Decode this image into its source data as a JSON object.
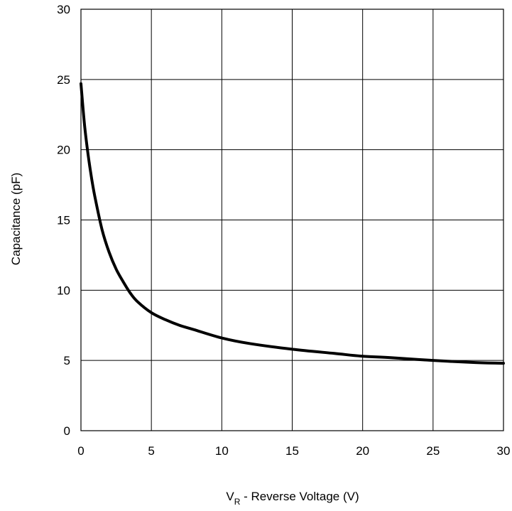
{
  "chart_data": {
    "type": "line",
    "title": "",
    "xlabel": {
      "main": "V",
      "subscript": "R",
      "rest": " - Reverse Voltage (V)"
    },
    "ylabel": "Capacitance (pF)",
    "xlim": [
      0,
      30
    ],
    "ylim": [
      0,
      30
    ],
    "xticks": [
      "0",
      "5",
      "10",
      "15",
      "20",
      "25",
      "30"
    ],
    "yticks": [
      "0",
      "5",
      "10",
      "15",
      "20",
      "25",
      "30"
    ],
    "grid": true,
    "legend": "none",
    "line_color": "#000000",
    "series": [
      {
        "x": [
          0,
          0.25,
          0.5,
          0.75,
          1.0,
          1.5,
          2.0,
          2.5,
          3.0,
          3.5,
          4.0,
          5.0,
          6.0,
          7.0,
          8.0,
          10.0,
          12.0,
          15.0,
          18.0,
          20.0,
          22.0,
          25.0,
          28.0,
          30.0
        ],
        "values": [
          24.7,
          21.8,
          19.7,
          18.0,
          16.6,
          14.3,
          12.7,
          11.5,
          10.6,
          9.8,
          9.2,
          8.4,
          7.9,
          7.5,
          7.2,
          6.6,
          6.2,
          5.8,
          5.5,
          5.3,
          5.2,
          5.0,
          4.85,
          4.8
        ]
      }
    ]
  }
}
